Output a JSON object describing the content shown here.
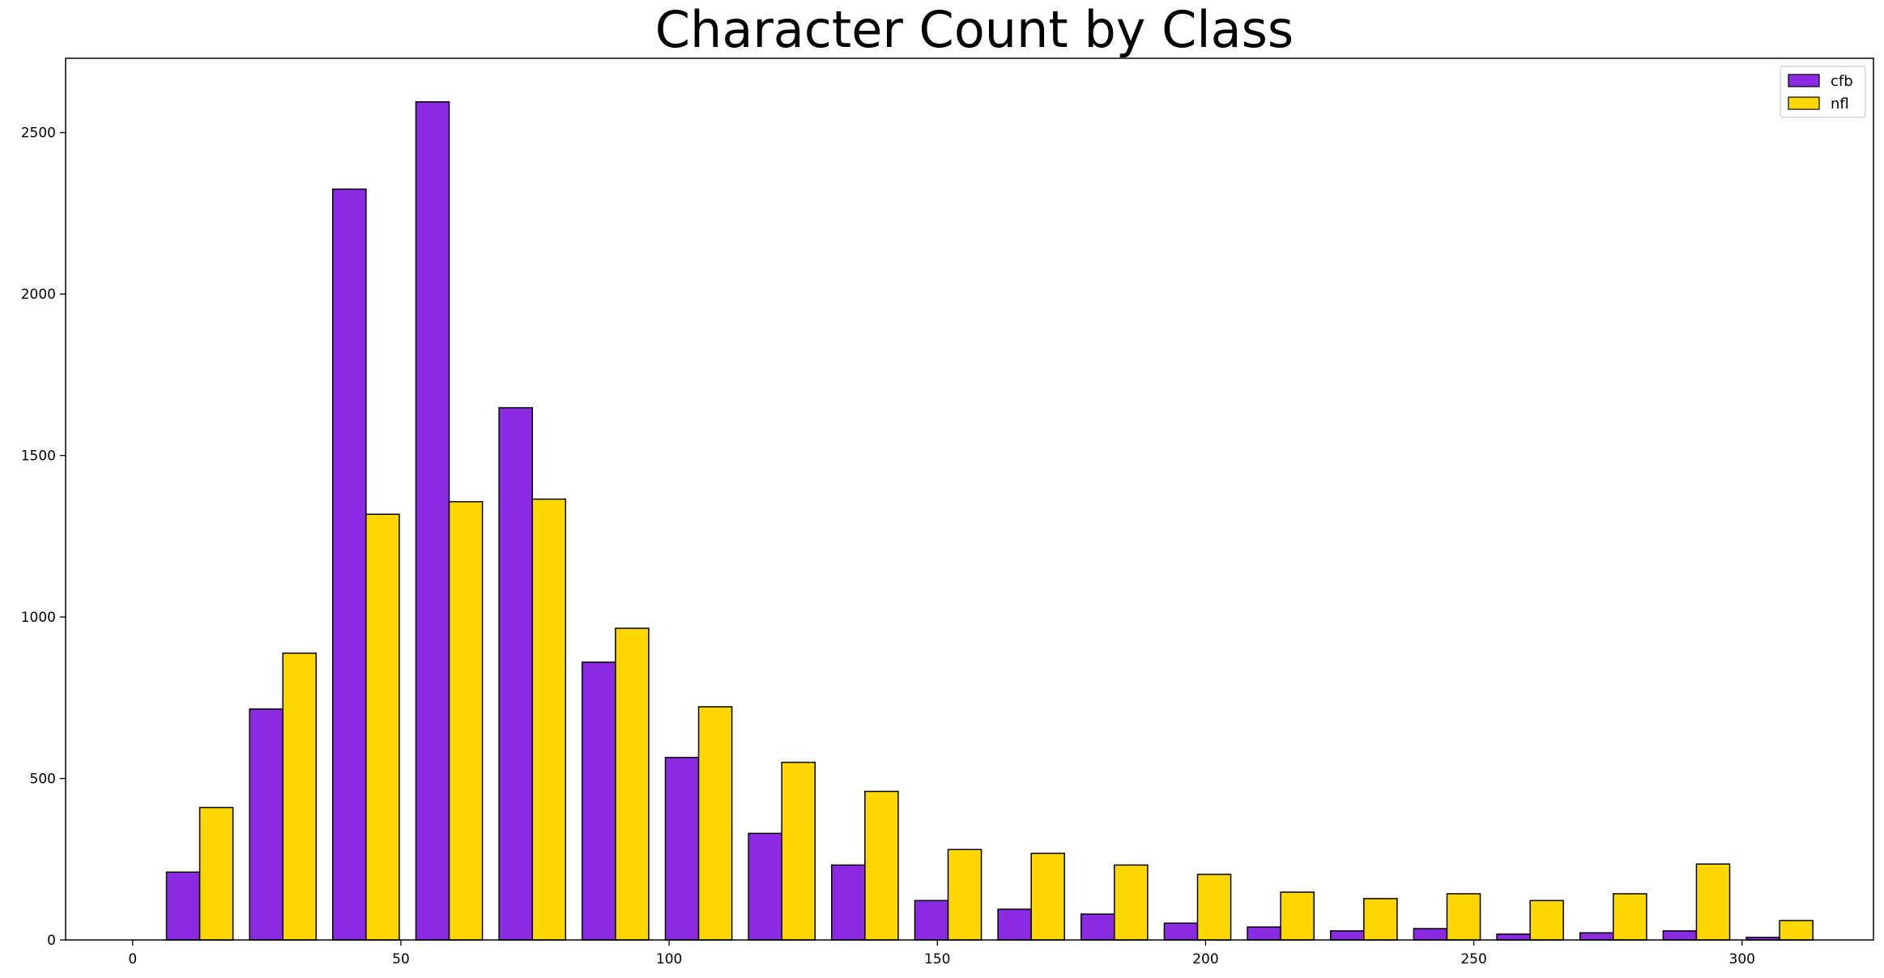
{
  "chart_data": {
    "type": "bar",
    "title": "Character Count by Class",
    "xlabel": "",
    "ylabel": "",
    "categories": [
      12.5,
      28,
      43.5,
      59,
      74.5,
      90,
      105.5,
      121,
      136.5,
      152,
      167.5,
      183,
      198.5,
      214,
      229.5,
      245,
      260.5,
      276,
      291.5,
      307
    ],
    "series": [
      {
        "name": "cfb",
        "color": "#8A2BE2",
        "values": [
          210,
          715,
          2325,
          2595,
          1648,
          860,
          565,
          330,
          232,
          122,
          95,
          80,
          52,
          40,
          28,
          35,
          18,
          22,
          28,
          8
        ]
      },
      {
        "name": "nfl",
        "color": "#FFD700",
        "values": [
          410,
          888,
          1318,
          1357,
          1365,
          965,
          722,
          550,
          460,
          280,
          268,
          232,
          203,
          148,
          128,
          143,
          122,
          143,
          235,
          60
        ]
      }
    ],
    "xlim": [
      -12.5,
      324.5
    ],
    "ylim": [
      0,
      2730
    ],
    "xticks": [
      "0",
      "50",
      "100",
      "150",
      "200",
      "250",
      "300"
    ],
    "yticks": [
      "0",
      "500",
      "1000",
      "1500",
      "2000",
      "2500"
    ],
    "legend_position": "top-right",
    "grid": false
  }
}
